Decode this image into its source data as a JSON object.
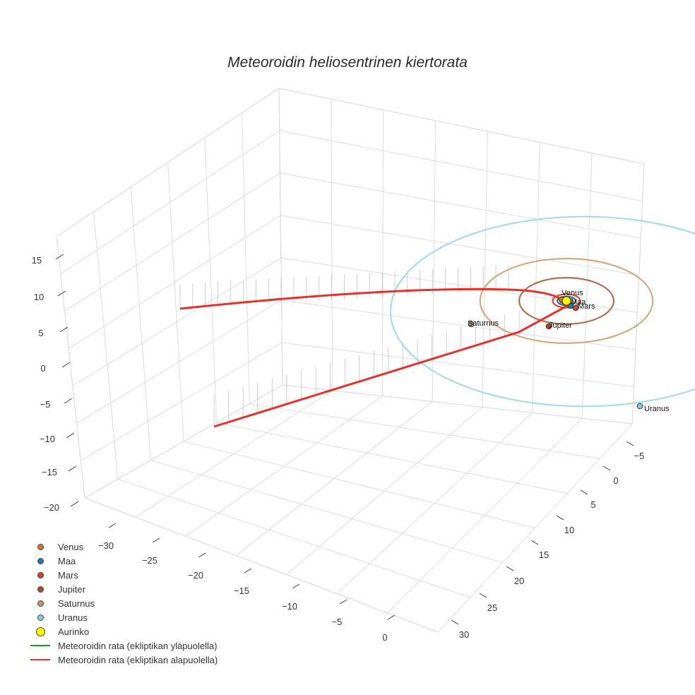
{
  "chart_data": {
    "type": "line",
    "title": "Meteoroidin heliosentrinen kiertorata",
    "axes": {
      "x_ticks": [
        "−30",
        "−25",
        "−20",
        "−15",
        "−10",
        "−5",
        "0"
      ],
      "y_ticks": [
        "−5",
        "0",
        "5",
        "10",
        "15",
        "20",
        "25",
        "30"
      ],
      "z_ticks": [
        "15",
        "10",
        "5",
        "0",
        "−5",
        "−10",
        "−15",
        "−20"
      ],
      "x_range": [
        -33,
        2
      ],
      "y_range": [
        -7,
        31
      ],
      "z_range": [
        -21,
        17
      ],
      "grid": true
    },
    "planets": [
      {
        "name": "Venus",
        "color": "#d4782a",
        "orbit_radius_au": 0.72
      },
      {
        "name": "Maa",
        "color": "#1f77b4",
        "orbit_radius_au": 1.0
      },
      {
        "name": "Mars",
        "color": "#d2462a",
        "orbit_radius_au": 1.52
      },
      {
        "name": "Jupiter",
        "color": "#a0522d",
        "orbit_radius_au": 5.2,
        "orbit_color": "#b07050"
      },
      {
        "name": "Saturnus",
        "color": "#c8956a",
        "orbit_radius_au": 9.5,
        "orbit_color": "#d2aa80"
      },
      {
        "name": "Uranus",
        "color": "#87cce6",
        "orbit_radius_au": 19.2,
        "orbit_color": "#a8dce8"
      }
    ],
    "sun": {
      "name": "Aurinko",
      "color": "#ffff00"
    },
    "trajectory": {
      "above_label": "Meteoroidin rata (ekliptikan yläpuolella)",
      "below_label": "Meteoroidin rata (ekliptikan alapuolella)",
      "above_color": "#1a9a1a",
      "below_color": "#e8302a"
    },
    "legend_position": "bottom-left"
  }
}
